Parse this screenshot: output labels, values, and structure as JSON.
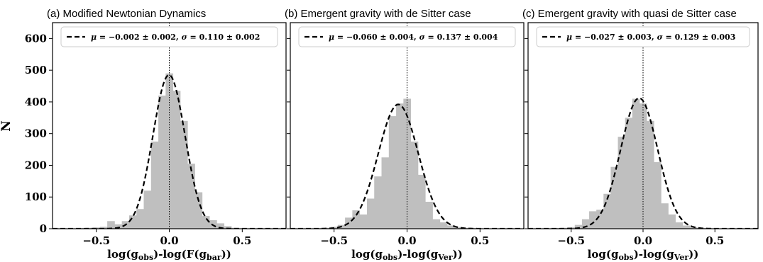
{
  "figure": {
    "ylabel": "N"
  },
  "chart_data": [
    {
      "type": "histogram",
      "title": "(a) Modified Newtonian Dynamics",
      "xlabel": "log(g_obs)-log(F(g_bar))",
      "xlabel_parts": [
        {
          "t": "log(g",
          "sub": false
        },
        {
          "t": "obs",
          "sub": true
        },
        {
          "t": ")-log(F(g",
          "sub": false
        },
        {
          "t": "bar",
          "sub": true
        },
        {
          "t": "))",
          "sub": false
        }
      ],
      "ylabel": "N",
      "xlim": [
        -0.8,
        0.8
      ],
      "ylim": [
        0,
        650
      ],
      "xticks": [
        -0.5,
        0.0,
        0.5
      ],
      "xtick_labels": [
        "−0.5",
        "0.0",
        "0.5"
      ],
      "yticks": [
        0,
        100,
        200,
        300,
        400,
        500,
        600
      ],
      "ytick_labels": [
        "0",
        "100",
        "200",
        "300",
        "400",
        "500",
        "600"
      ],
      "show_yticklabels": true,
      "bin_edges": [
        -0.675,
        -0.625,
        -0.575,
        -0.525,
        -0.475,
        -0.425,
        -0.375,
        -0.325,
        -0.275,
        -0.225,
        -0.175,
        -0.125,
        -0.075,
        -0.025,
        0.025,
        0.075,
        0.125,
        0.175,
        0.225,
        0.275,
        0.325,
        0.375,
        0.425,
        0.475,
        0.525,
        0.575,
        0.625
      ],
      "counts": [
        1,
        2,
        3,
        4,
        6,
        24,
        14,
        24,
        42,
        62,
        120,
        275,
        420,
        490,
        435,
        340,
        205,
        115,
        40,
        27,
        17,
        8,
        3,
        1,
        1,
        1
      ],
      "fit": {
        "type": "gaussian",
        "mu": -0.002,
        "sigma": 0.11,
        "peak": 485
      },
      "legend": {
        "label": "μ = −0.002 ± 0.002, σ = 0.110 ± 0.002",
        "parts": [
          {
            "t": "μ",
            "it": true
          },
          {
            "t": " = −0.002 ± 0.002, ",
            "it": false
          },
          {
            "t": "σ",
            "it": true
          },
          {
            "t": " = 0.110 ± 0.002",
            "it": false
          }
        ],
        "position": "top"
      },
      "vline_x": 0.0,
      "colors": {
        "bars": "#bfbfbf",
        "fit": "#000000",
        "vline": "#000000"
      }
    },
    {
      "type": "histogram",
      "title": "(b) Emergent gravity with de Sitter case",
      "xlabel": "log(g_obs)-log(g_Ver))",
      "xlabel_parts": [
        {
          "t": "log(g",
          "sub": false
        },
        {
          "t": "obs",
          "sub": true
        },
        {
          "t": ")-log(g",
          "sub": false
        },
        {
          "t": "Ver",
          "sub": true
        },
        {
          "t": "))",
          "sub": false
        }
      ],
      "xlim": [
        -0.8,
        0.8
      ],
      "ylim": [
        0,
        650
      ],
      "xticks": [
        -0.5,
        0.0,
        0.5
      ],
      "xtick_labels": [
        "−0.5",
        "0.0",
        "0.5"
      ],
      "yticks": [
        0,
        100,
        200,
        300,
        400,
        500,
        600
      ],
      "show_yticklabels": false,
      "bin_edges": [
        -0.675,
        -0.625,
        -0.575,
        -0.525,
        -0.475,
        -0.425,
        -0.375,
        -0.325,
        -0.275,
        -0.225,
        -0.175,
        -0.125,
        -0.075,
        -0.025,
        0.025,
        0.075,
        0.125,
        0.175,
        0.225,
        0.275,
        0.325,
        0.375,
        0.425,
        0.475,
        0.525,
        0.575,
        0.625
      ],
      "counts": [
        1,
        2,
        3,
        6,
        12,
        35,
        58,
        45,
        95,
        165,
        225,
        355,
        395,
        410,
        275,
        170,
        85,
        30,
        20,
        10,
        5,
        3,
        2,
        1,
        1,
        1
      ],
      "fit": {
        "type": "gaussian",
        "mu": -0.06,
        "sigma": 0.137,
        "peak": 392
      },
      "legend": {
        "label": "μ = −0.060 ± 0.004, σ = 0.137 ± 0.004",
        "parts": [
          {
            "t": "μ",
            "it": true
          },
          {
            "t": " = −0.060 ± 0.004, ",
            "it": false
          },
          {
            "t": "σ",
            "it": true
          },
          {
            "t": " = 0.137 ± 0.004",
            "it": false
          }
        ],
        "position": "top"
      },
      "vline_x": 0.0,
      "colors": {
        "bars": "#bfbfbf",
        "fit": "#000000",
        "vline": "#000000"
      }
    },
    {
      "type": "histogram",
      "title": "(c) Emergent gravity with quasi de Sitter case",
      "xlabel": "log(g_obs)-log(g_Ver))",
      "xlabel_parts": [
        {
          "t": "log(g",
          "sub": false
        },
        {
          "t": "obs",
          "sub": true
        },
        {
          "t": ")-log(g",
          "sub": false
        },
        {
          "t": "Ver",
          "sub": true
        },
        {
          "t": "))",
          "sub": false
        }
      ],
      "xlim": [
        -0.8,
        0.8
      ],
      "ylim": [
        0,
        650
      ],
      "xticks": [
        -0.5,
        0.0,
        0.5
      ],
      "xtick_labels": [
        "−0.5",
        "0.0",
        "0.5"
      ],
      "yticks": [
        0,
        100,
        200,
        300,
        400,
        500,
        600
      ],
      "show_yticklabels": false,
      "bin_edges": [
        -0.675,
        -0.625,
        -0.575,
        -0.525,
        -0.475,
        -0.425,
        -0.375,
        -0.325,
        -0.275,
        -0.225,
        -0.175,
        -0.125,
        -0.075,
        -0.025,
        0.025,
        0.075,
        0.125,
        0.175,
        0.225,
        0.275,
        0.325,
        0.375,
        0.425,
        0.475,
        0.525,
        0.575,
        0.625
      ],
      "counts": [
        1,
        2,
        3,
        5,
        12,
        30,
        55,
        60,
        110,
        195,
        290,
        350,
        410,
        395,
        340,
        210,
        80,
        45,
        20,
        10,
        5,
        3,
        2,
        1,
        1,
        1
      ],
      "fit": {
        "type": "gaussian",
        "mu": -0.027,
        "sigma": 0.129,
        "peak": 412
      },
      "legend": {
        "label": "μ = −0.027 ± 0.003, σ = 0.129 ± 0.003",
        "parts": [
          {
            "t": "μ",
            "it": true
          },
          {
            "t": " = −0.027 ± 0.003, ",
            "it": false
          },
          {
            "t": "σ",
            "it": true
          },
          {
            "t": " = 0.129 ± 0.003",
            "it": false
          }
        ],
        "position": "top"
      },
      "vline_x": 0.0,
      "colors": {
        "bars": "#bfbfbf",
        "fit": "#000000",
        "vline": "#000000"
      }
    }
  ]
}
